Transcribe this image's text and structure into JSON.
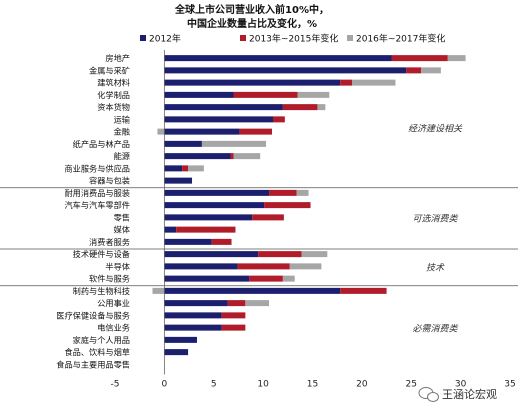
{
  "chart_data": {
    "type": "bar",
    "orientation": "horizontal",
    "stacked": true,
    "title": [
      "全球上市公司营业收入前10%中，",
      "中国企业数量占比及变化，%"
    ],
    "categories": [
      "房地产",
      "金属与采矿",
      "建筑材料",
      "化学制品",
      "资本货物",
      "运输",
      "金融",
      "纸产品与林产品",
      "能源",
      "商业服务与供应品",
      "容器与包装",
      "耐用消费品与服装",
      "汽车与汽车零部件",
      "零售",
      "媒体",
      "消费者服务",
      "技术硬件与设备",
      "半导体",
      "软件与服务",
      "制药与生物科技",
      "公用事业",
      "医疗保健设备与服务",
      "电信业务",
      "家庭与个人用品",
      "食品、饮料与烟草",
      "食品与主要用品零售"
    ],
    "series": [
      {
        "name": "2012年",
        "color": "#1c1f6e",
        "values": [
          23,
          24.5,
          17.8,
          7,
          12,
          11,
          7.6,
          3.8,
          6.7,
          1.8,
          2.8,
          10.6,
          10.1,
          8.9,
          1.2,
          4.8,
          9.5,
          7.4,
          8.6,
          17.8,
          6.4,
          5.8,
          5.8,
          3.3,
          2.4,
          0
        ]
      },
      {
        "name": "2013年~2015年变化",
        "color": "#b01c2a",
        "values": [
          5.7,
          1.5,
          1.2,
          6.5,
          3.5,
          1.2,
          3.3,
          0,
          0.3,
          0.6,
          0,
          2.8,
          4.7,
          3.2,
          6,
          2,
          4.4,
          5.3,
          3.4,
          4.7,
          1.8,
          2.4,
          2.4,
          0,
          0,
          0
        ]
      },
      {
        "name": "2016年~2017年变化",
        "color": "#a6a6a6",
        "values": [
          1.8,
          2,
          4.4,
          3.2,
          0.8,
          0,
          -0.7,
          6.5,
          2.7,
          1.6,
          0,
          1.2,
          0,
          0,
          0,
          0,
          2.6,
          3.2,
          1.2,
          -1.2,
          2.4,
          0,
          0,
          0,
          0,
          0
        ]
      }
    ],
    "xlim": [
      -5,
      35
    ],
    "xticks": [
      "-5",
      "0",
      "5",
      "10",
      "15",
      "20",
      "25",
      "30",
      "35"
    ],
    "groups": [
      {
        "label": "经济建设相关",
        "from": 0,
        "to": 10
      },
      {
        "label": "可选消费类",
        "from": 11,
        "to": 15
      },
      {
        "label": "技术",
        "from": 16,
        "to": 18
      },
      {
        "label": "必需消费类",
        "from": 19,
        "to": 25
      }
    ],
    "legend_position": "top"
  },
  "watermark": {
    "text": "王涵论宏观",
    "icon": "wechat-bubble-icon"
  }
}
